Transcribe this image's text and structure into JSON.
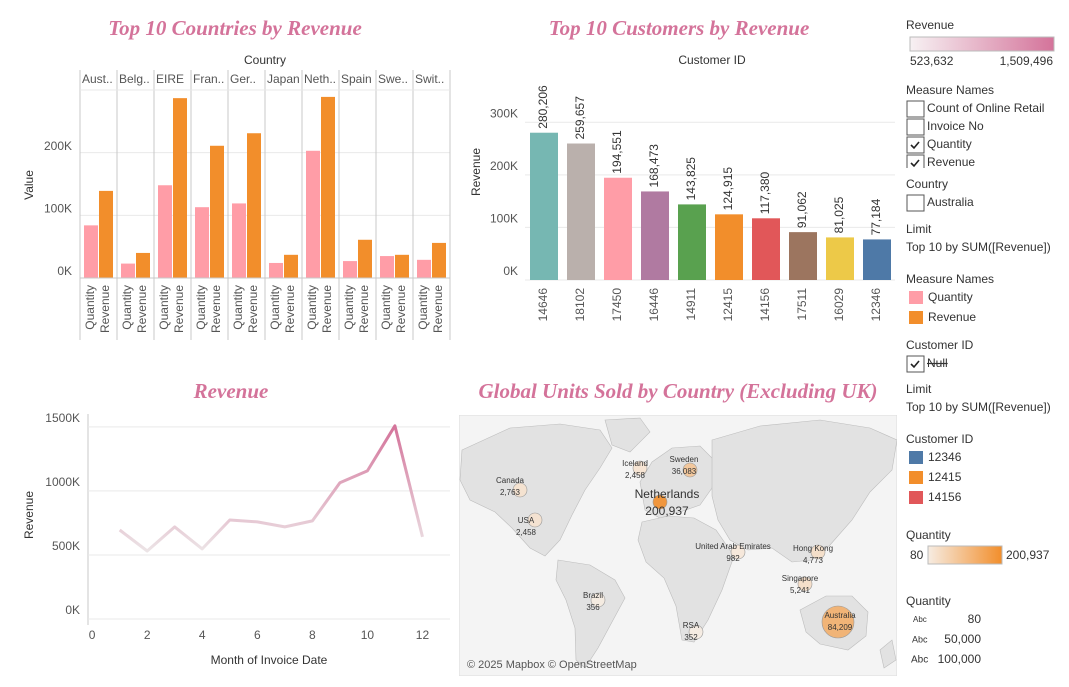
{
  "chart_data": [
    {
      "type": "grouped-bar",
      "title": "Top 10 Countries by Revenue",
      "column_label": "Country",
      "y_label": "Value",
      "categories": [
        "Aust..",
        "Belg..",
        "EIRE",
        "Fran..",
        "Ger..",
        "Japan",
        "Neth..",
        "Spain",
        "Swe..",
        "Swit.."
      ],
      "series": [
        {
          "name": "Quantity",
          "color": "#ff9da7",
          "values": [
            84000,
            23000,
            148000,
            113000,
            119000,
            24000,
            203000,
            27000,
            35000,
            29000
          ]
        },
        {
          "name": "Revenue",
          "color": "#f28e2b",
          "values": [
            139000,
            40000,
            287000,
            211000,
            231000,
            37000,
            289000,
            61000,
            37000,
            56000
          ]
        }
      ],
      "ylim": [
        0,
        300000
      ],
      "yticks": [
        {
          "value": 0,
          "label": "0K"
        },
        {
          "value": 100000,
          "label": "100K"
        },
        {
          "value": 200000,
          "label": "200K"
        }
      ],
      "grid": true
    },
    {
      "type": "bar",
      "title": "Top 10 Customers by Revenue",
      "x_label": "Customer ID",
      "y_label": "Revenue",
      "categories": [
        "14646",
        "18102",
        "17450",
        "16446",
        "14911",
        "12415",
        "14156",
        "17511",
        "16029",
        "12346"
      ],
      "values": [
        280206,
        259657,
        194551,
        168473,
        143825,
        124915,
        117380,
        91062,
        81025,
        77184
      ],
      "value_labels": [
        "280,206",
        "259,657",
        "194,551",
        "168,473",
        "143,825",
        "124,915",
        "117,380",
        "91,062",
        "81,025",
        "77,184"
      ],
      "colors": [
        "#76b7b2",
        "#bab0ac",
        "#ff9da7",
        "#b07aa1",
        "#59a14f",
        "#f28e2b",
        "#e15759",
        "#9c755f",
        "#edc948",
        "#4e79a7"
      ],
      "ylim": [
        0,
        390000
      ],
      "yticks": [
        {
          "value": 0,
          "label": "0K"
        },
        {
          "value": 100000,
          "label": "100K"
        },
        {
          "value": 200000,
          "label": "200K"
        },
        {
          "value": 300000,
          "label": "300K"
        }
      ],
      "grid": true
    },
    {
      "type": "line",
      "title": "Revenue",
      "x_label": "Month of Invoice Date",
      "y_label": "Revenue",
      "x": [
        1,
        2,
        3,
        4,
        5,
        6,
        7,
        8,
        9,
        10,
        11,
        12
      ],
      "values": [
        695000,
        531000,
        719000,
        547000,
        773000,
        758000,
        719000,
        766000,
        1063000,
        1156000,
        1508000,
        641000
      ],
      "color_range": [
        "#ece4e6",
        "#d4739a"
      ],
      "xlim": [
        -0.15,
        13
      ],
      "xticks": [
        0,
        2,
        4,
        6,
        8,
        10,
        12
      ],
      "ylim": [
        0,
        1600000
      ],
      "yticks": [
        {
          "value": 0,
          "label": "0K"
        },
        {
          "value": 500000,
          "label": "500K"
        },
        {
          "value": 1000000,
          "label": "1000K"
        },
        {
          "value": 1500000,
          "label": "1500K"
        }
      ],
      "grid": true
    },
    {
      "type": "map",
      "title": "Global Units Sold by Country (Excluding UK)",
      "credit": "© 2025 Mapbox © OpenStreetMap",
      "categories": [
        "Canada",
        "USA",
        "Iceland",
        "Sweden",
        "Netherlands",
        "United Arab Emirates",
        "Hong Kong",
        "Singapore",
        "Brazil",
        "RSA",
        "Australia"
      ],
      "values": [
        2763,
        2458,
        2458,
        36083,
        200937,
        982,
        4773,
        5241,
        356,
        352,
        84209
      ],
      "value_labels": [
        "2,763",
        "2,458",
        "2,458",
        "36,083",
        "200,937",
        "982",
        "4,773",
        "5,241",
        "356",
        "352",
        "84,209"
      ],
      "color_range": [
        "#f6ece2",
        "#f28e2b"
      ]
    }
  ],
  "sidebar": {
    "revenue_legend": {
      "title": "Revenue",
      "min_label": "523,632",
      "max_label": "1,509,496",
      "colors": [
        "#f7f1f3",
        "#d4739a"
      ]
    },
    "measure_filter": {
      "title": "Measure Names",
      "items": [
        "Count of Online Retail",
        "Invoice No",
        "Quantity",
        "Revenue"
      ],
      "checked": [
        false,
        false,
        true,
        true
      ]
    },
    "country_filter": {
      "title": "Country",
      "items": [
        "Australia"
      ],
      "checked": [
        false
      ]
    },
    "limit_1": {
      "title": "Limit",
      "text": "Top 10 by SUM([Revenue])"
    },
    "measure_legend": {
      "title": "Measure Names",
      "items": [
        "Quantity",
        "Revenue"
      ],
      "colors": [
        "#ff9da7",
        "#f28e2b"
      ]
    },
    "customer_filter": {
      "title": "Customer ID",
      "items": [
        "Null"
      ],
      "checked": [
        true
      ]
    },
    "limit_2": {
      "title": "Limit",
      "text": "Top 10 by SUM([Revenue])"
    },
    "customer_legend": {
      "title": "Customer ID",
      "items": [
        "12346",
        "12415",
        "14156"
      ],
      "colors": [
        "#4e79a7",
        "#f28e2b",
        "#e15759"
      ]
    },
    "quantity_legend": {
      "title": "Quantity",
      "min_label": "80",
      "max_label": "200,937",
      "colors": [
        "#f6ece2",
        "#f28e2b"
      ]
    },
    "size_legend": {
      "title": "Quantity",
      "marker": "Abc",
      "items": [
        "80",
        "50,000",
        "100,000"
      ]
    }
  }
}
